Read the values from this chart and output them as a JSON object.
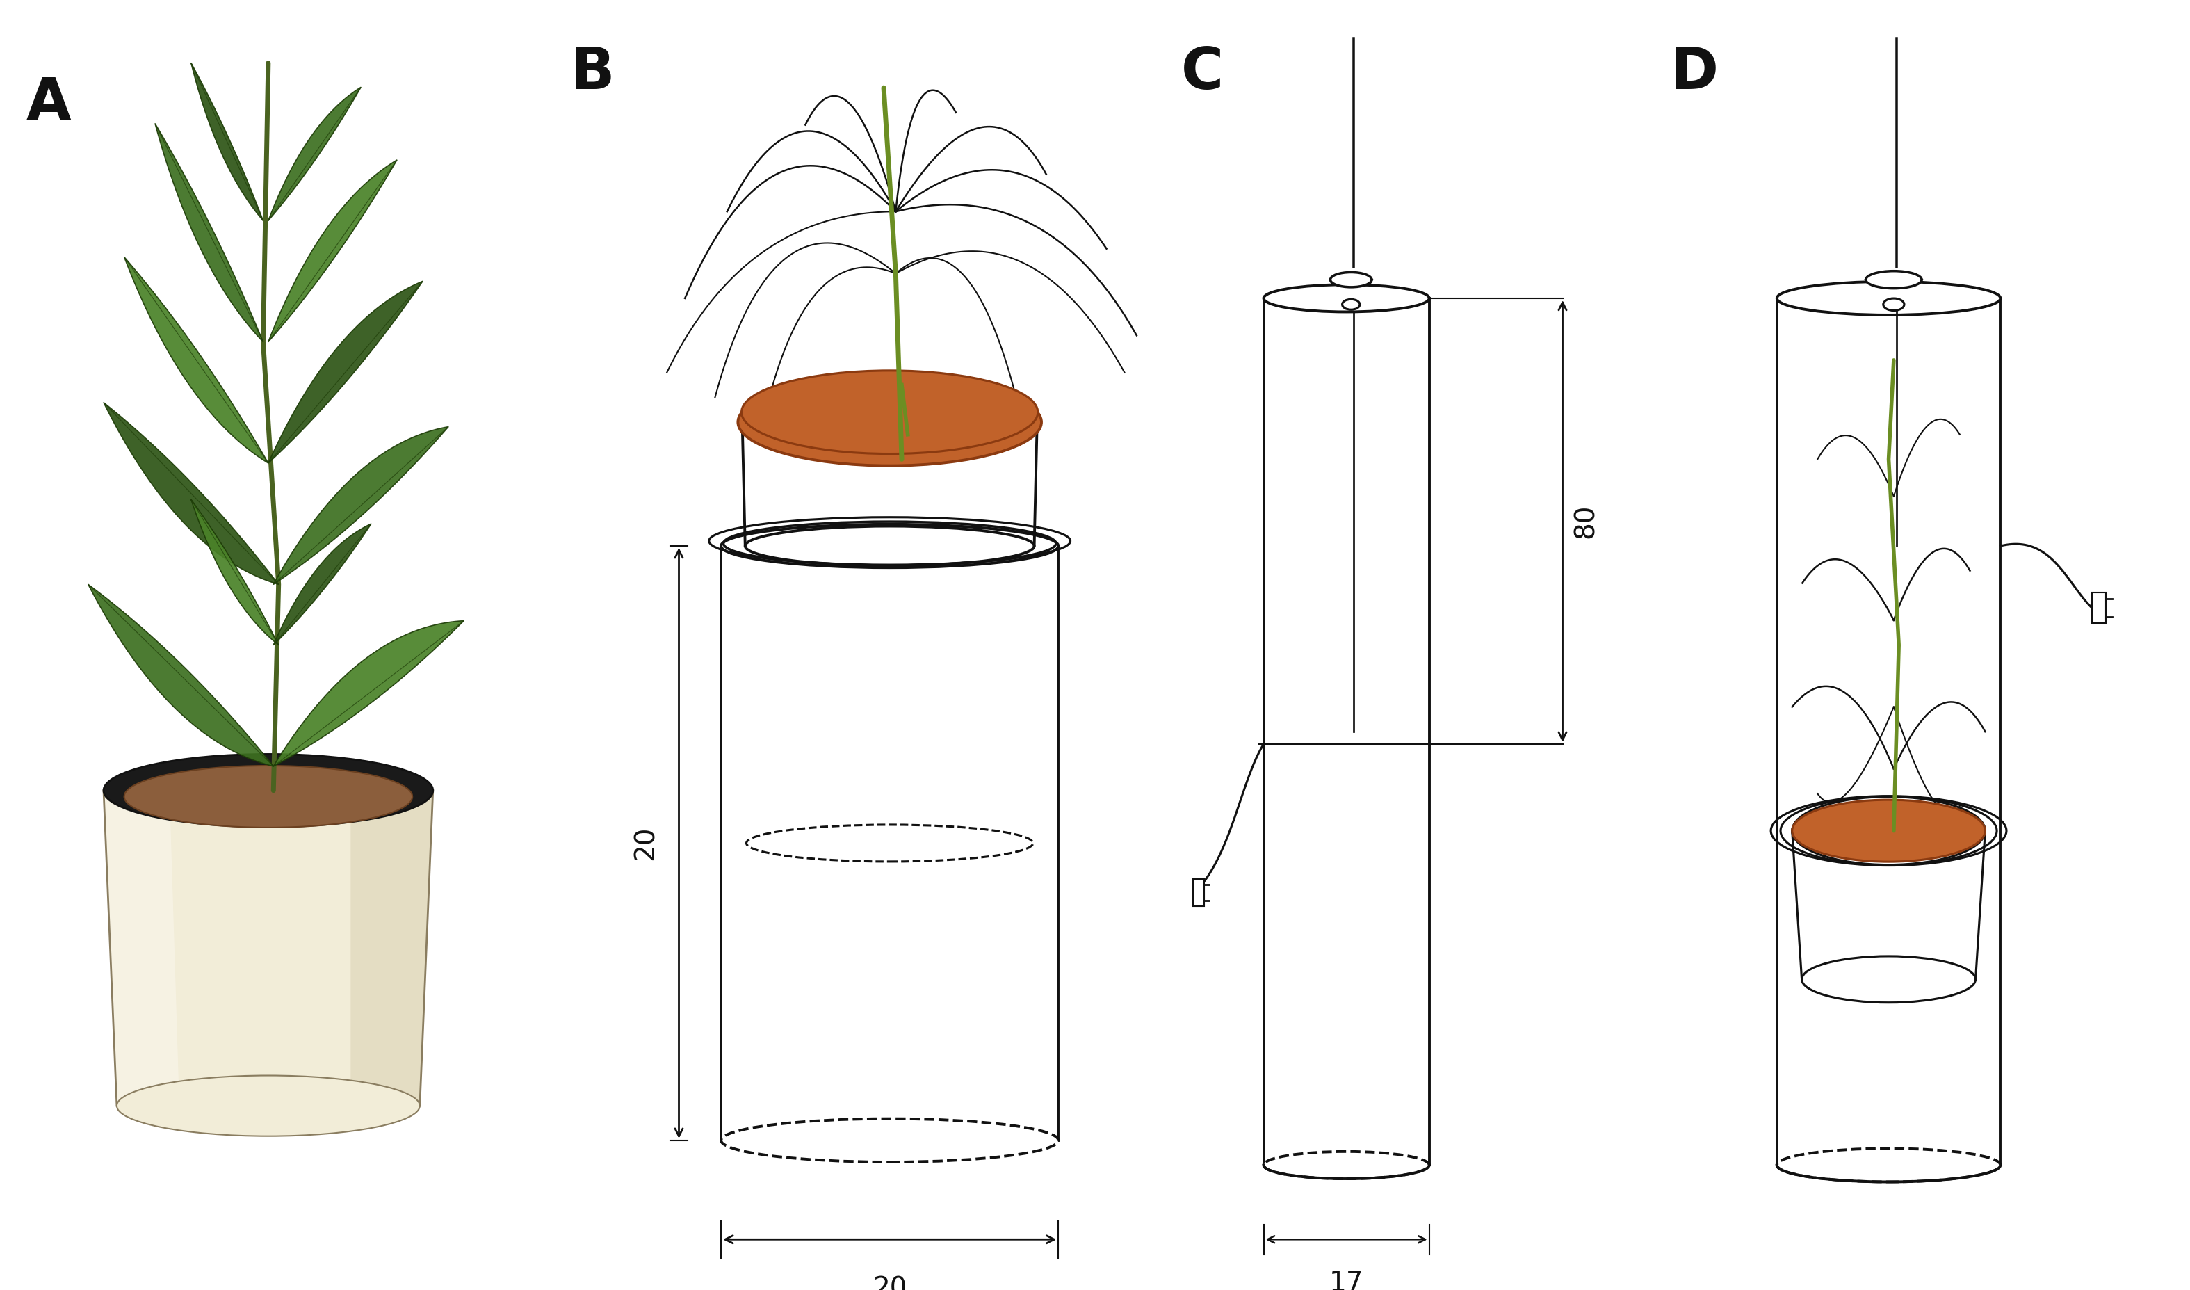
{
  "figure_width": 31.5,
  "figure_height": 18.55,
  "background_color": "#ffffff",
  "panel_labels": [
    "A",
    "B",
    "C",
    "D"
  ],
  "panel_label_fontsize": 60,
  "panel_label_fontweight": "bold",
  "soil_color": "#c1622a",
  "stem_color": "#6b8e23",
  "line_color": "#111111",
  "line_width": 2.8,
  "dim_fontsize": 28
}
